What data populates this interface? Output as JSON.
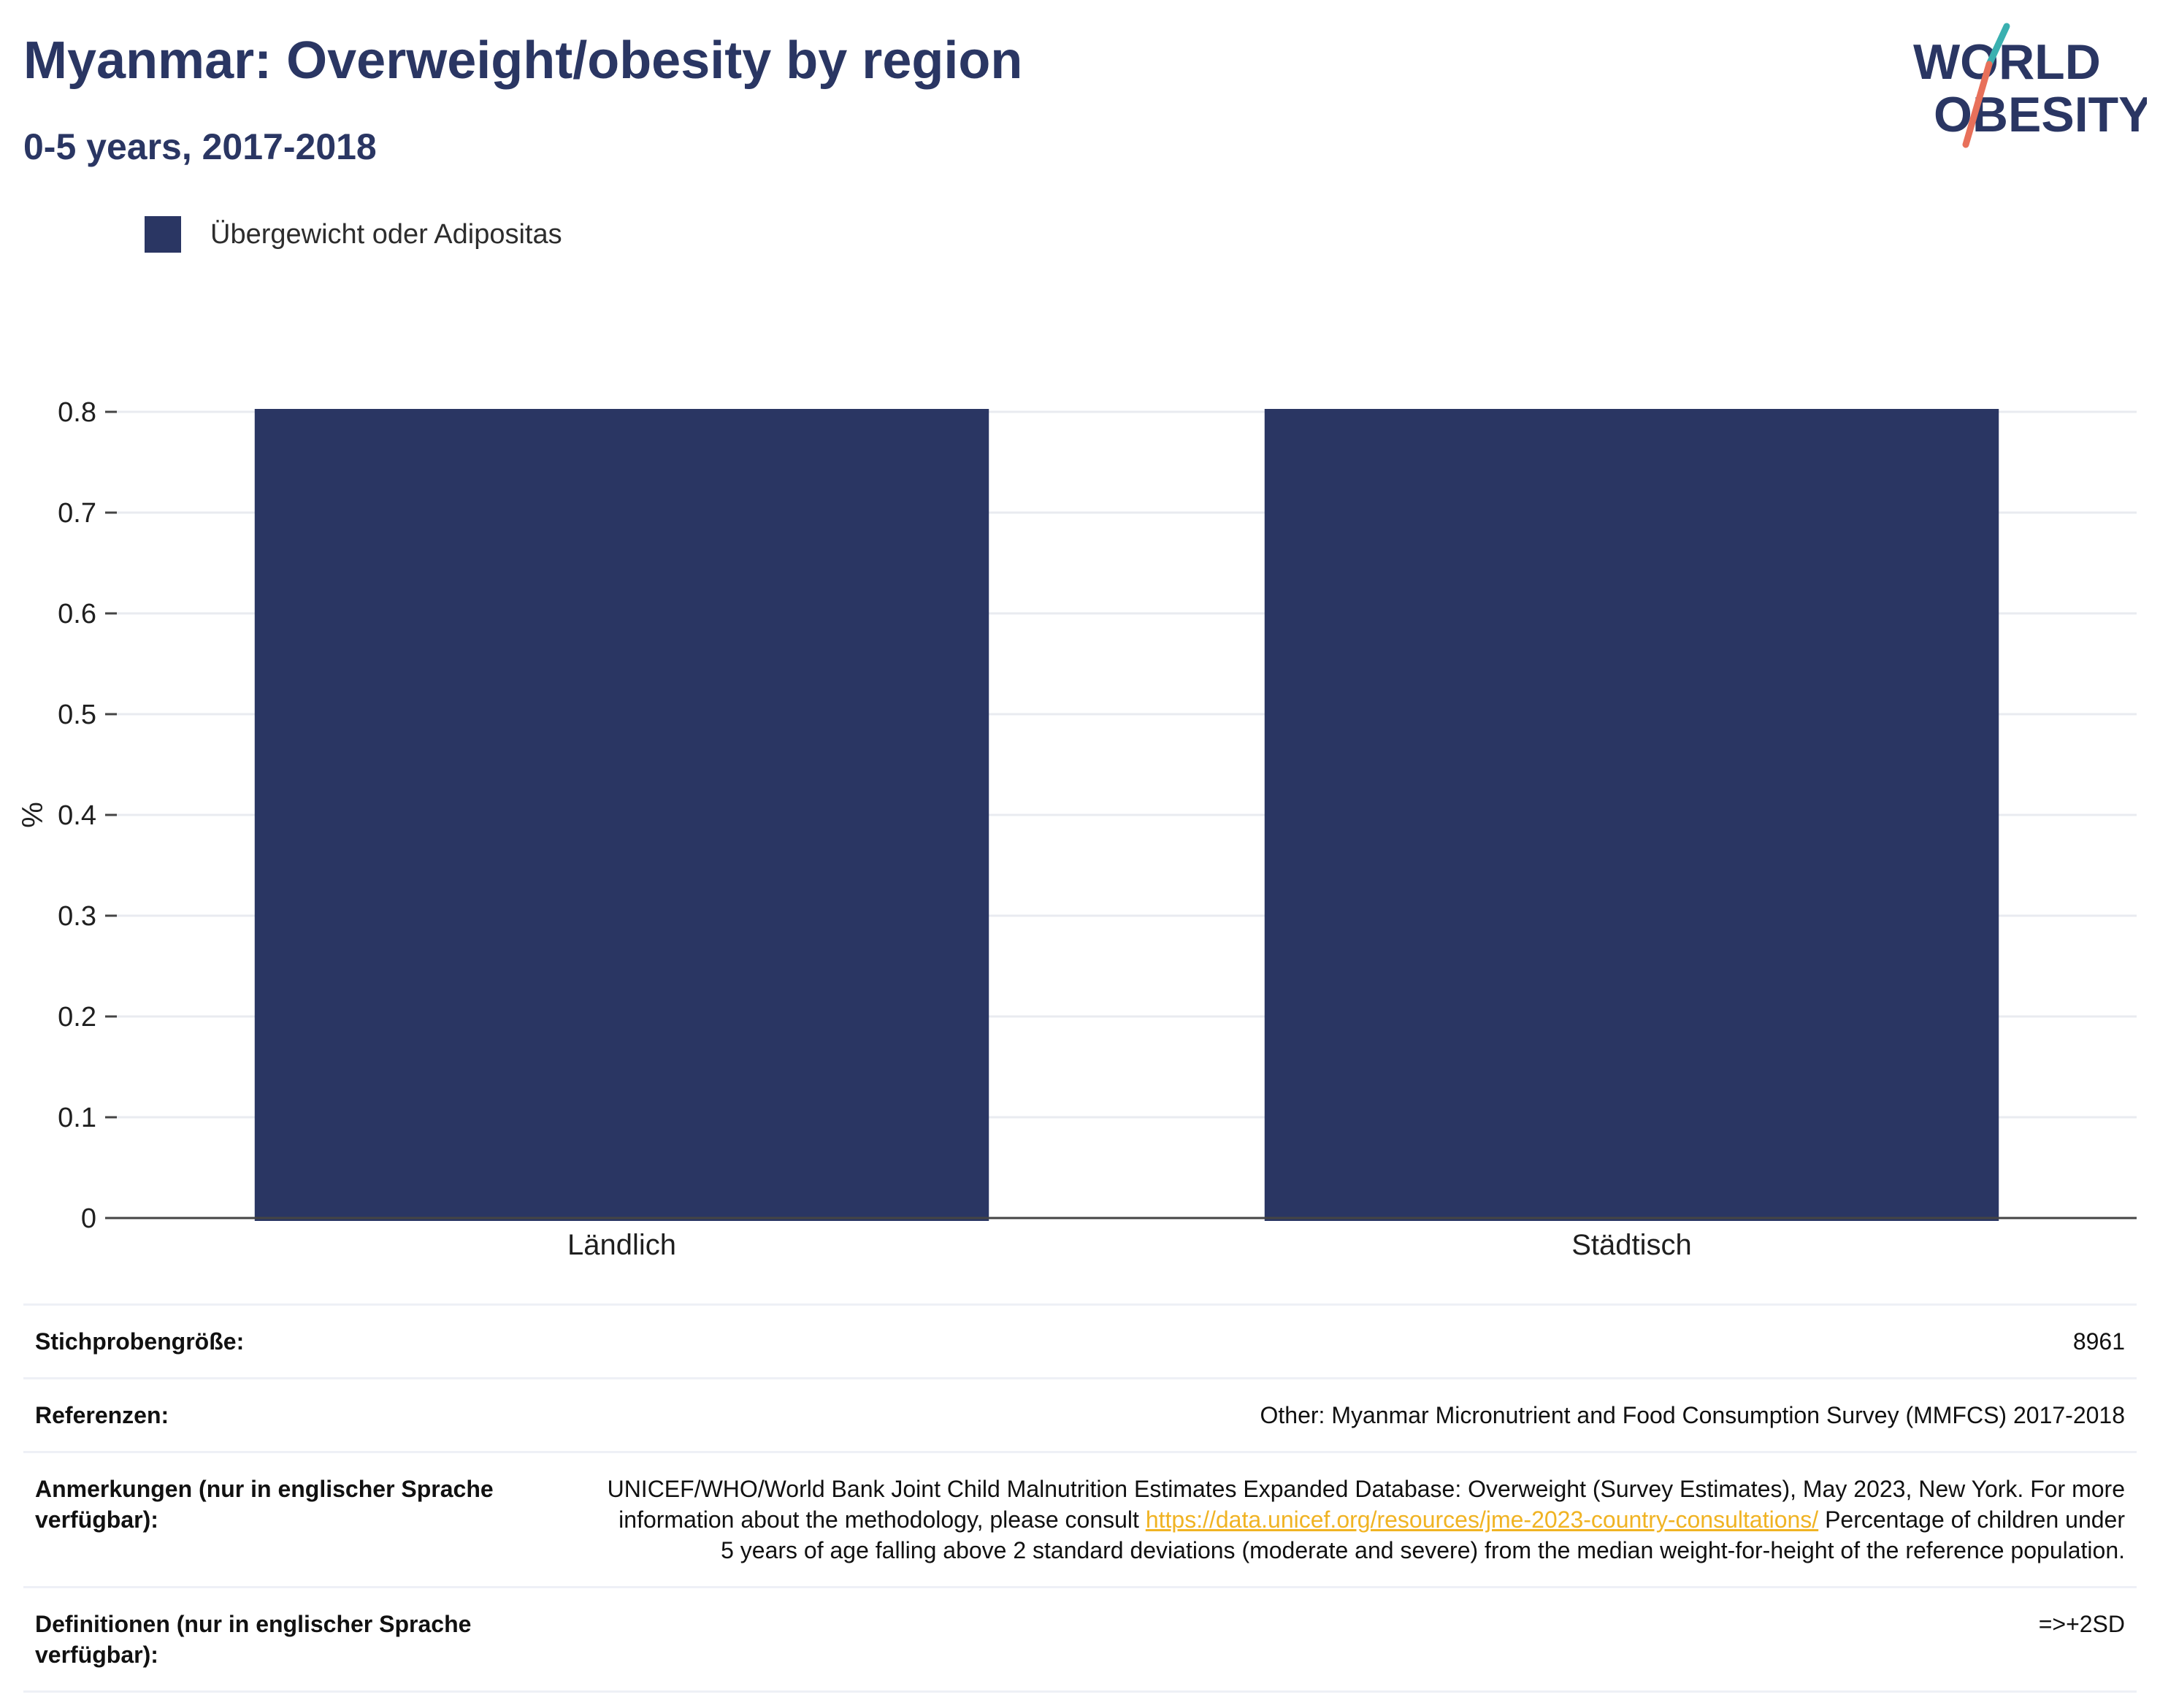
{
  "header": {
    "title": "Myanmar: Overweight/obesity by region",
    "subtitle": "0-5 years, 2017-2018"
  },
  "logo": {
    "line1": "WORLD",
    "line2": "OBESITY",
    "icon": "world-obesity-logo"
  },
  "colors": {
    "bar": "#2a3663",
    "title": "#2a3663",
    "link": "#f0b323",
    "logo_teal": "#3ab0b0",
    "logo_coral": "#e8705a"
  },
  "chart_data": {
    "type": "bar",
    "title": "Myanmar: Overweight/obesity by region",
    "subtitle": "0-5 years, 2017-2018",
    "categories": [
      "Ländlich",
      "Städtisch"
    ],
    "series": [
      {
        "name": "Übergewicht oder Adipositas",
        "values": [
          0.8,
          0.8
        ]
      }
    ],
    "xlabel": "",
    "ylabel": "%",
    "ylim": [
      0,
      0.8
    ],
    "yticks": [
      "0",
      "0.1",
      "0.2",
      "0.3",
      "0.4",
      "0.5",
      "0.6",
      "0.7",
      "0.8"
    ],
    "grid": true,
    "legend": "top-left"
  },
  "footer": {
    "rows": [
      {
        "key": "Stichprobengröße:",
        "value": "8961"
      },
      {
        "key": "Referenzen:",
        "value": "Other: Myanmar Micronutrient and Food Consumption Survey (MMFCS) 2017-2018"
      },
      {
        "key": "Anmerkungen (nur in englischer Sprache verfügbar):",
        "value_pre": "UNICEF/WHO/World Bank Joint Child Malnutrition Estimates Expanded Database: Overweight (Survey Estimates), May 2023, New York. For more information about the methodology, please consult ",
        "link": "https://data.unicef.org/resources/jme-2023-country-consultations/",
        "value_post": " Percentage of children under 5 years of age falling above 2 standard deviations (moderate and severe) from the median weight-for-height of the reference population."
      },
      {
        "key": "Definitionen (nur in englischer Sprache verfügbar):",
        "value": "=>+2SD"
      }
    ]
  }
}
